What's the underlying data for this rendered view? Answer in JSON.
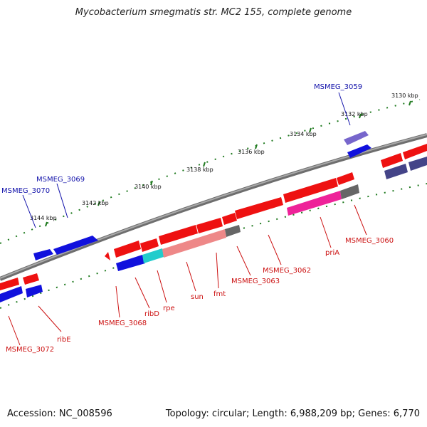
{
  "title": "Mycobacterium smegmatis str. MC2 155, complete genome",
  "footer": {
    "accession": "Accession: NC_008596",
    "summary": "Topology: circular; Length: 6,988,209 bp; Genes: 6,770"
  },
  "colors": {
    "backbone": "#888888",
    "tick": "#1f7a1f",
    "forward_gene": "#ee1111",
    "reverse_gene": "#1111dd",
    "forward_label": "#cc1111",
    "reverse_label": "#1111aa",
    "rna_gene": "#666666",
    "pink_gene": "#ee8888",
    "magenta_gene": "#ee2299",
    "cyan_gene": "#22cccc",
    "light_blue_gene": "#7766cc",
    "dark_blue_gene": "#444488"
  },
  "ticks": [
    "3130 kbp",
    "3132 kbp",
    "3134 kbp",
    "3136 kbp",
    "3138 kbp",
    "3140 kbp",
    "3142 kbp",
    "3144 kbp"
  ],
  "gene_labels_reverse": [
    "MSMEG_3059",
    "MSMEG_3069",
    "MSMEG_3070"
  ],
  "gene_labels_forward": [
    "MSMEG_3060",
    "priA",
    "MSMEG_3062",
    "MSMEG_3063",
    "fmt",
    "sun",
    "rpe",
    "ribD",
    "MSMEG_3068",
    "ribE",
    "MSMEG_3072"
  ]
}
